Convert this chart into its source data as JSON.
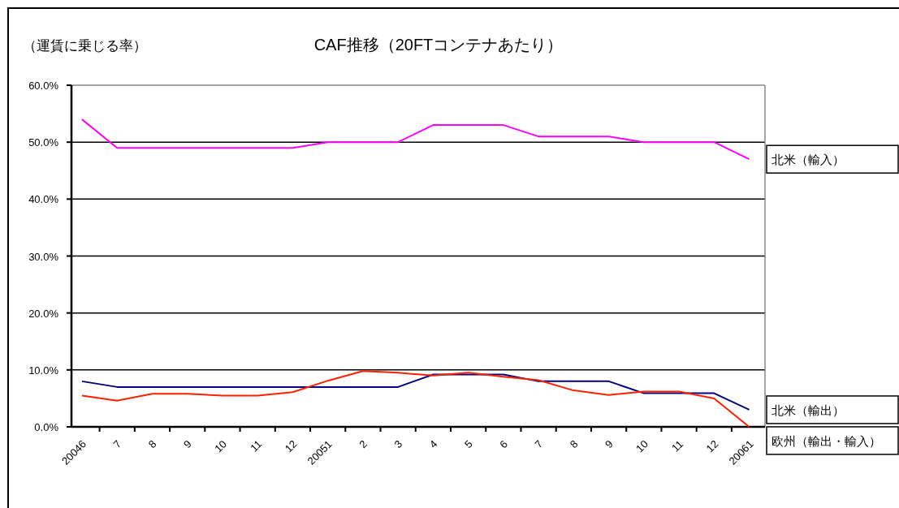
{
  "chart_data": {
    "type": "line",
    "title": "CAF推移（20FTコンテナあたり）",
    "ylabel": "（運賃に乗じる率）",
    "categories": [
      "20046",
      "7",
      "8",
      "9",
      "10",
      "11",
      "12",
      "20051",
      "2",
      "3",
      "4",
      "5",
      "6",
      "7",
      "8",
      "9",
      "10",
      "11",
      "12",
      "20061"
    ],
    "series": [
      {
        "name": "北米（輸入）",
        "color": "#ff00ff",
        "values": [
          54,
          49,
          49,
          49,
          49,
          49,
          49,
          50,
          50,
          50,
          53,
          53,
          53,
          51,
          51,
          51,
          50,
          50,
          50,
          47
        ]
      },
      {
        "name": "北米（輸出）",
        "color": "#000080",
        "values": [
          8,
          7,
          7,
          7,
          7,
          7,
          7,
          7,
          7,
          7,
          9.2,
          9.2,
          9.2,
          8,
          8,
          8,
          5.9,
          5.9,
          5.9,
          3
        ]
      },
      {
        "name": "欧州（輸出・輸入）",
        "color": "#ff2000",
        "values": [
          5.5,
          4.6,
          5.8,
          5.8,
          5.5,
          5.5,
          6.1,
          8.1,
          9.8,
          9.5,
          9,
          9.5,
          8.8,
          8.2,
          6.4,
          5.6,
          6.2,
          6.2,
          5,
          0
        ]
      }
    ],
    "ylim": [
      0,
      60
    ],
    "yticks": [
      {
        "value": 0,
        "label": "0.0%"
      },
      {
        "value": 10,
        "label": "10.0%"
      },
      {
        "value": 20,
        "label": "20.0%"
      },
      {
        "value": 30,
        "label": "30.0%"
      },
      {
        "value": 40,
        "label": "40.0%"
      },
      {
        "value": 50,
        "label": "50.0%"
      },
      {
        "value": 60,
        "label": "60.0%"
      }
    ],
    "grid": "y"
  }
}
